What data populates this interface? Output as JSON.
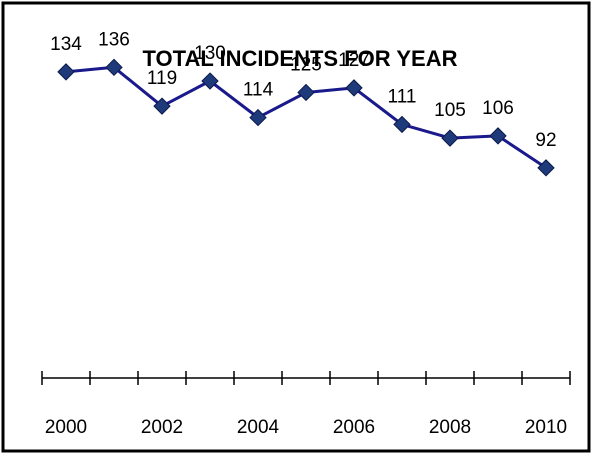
{
  "chart_data": {
    "type": "line",
    "title": "TOTAL INCIDENTS FOR YEAR",
    "x": [
      2000,
      2001,
      2002,
      2003,
      2004,
      2005,
      2006,
      2007,
      2008,
      2009,
      2010
    ],
    "x_tick_labels": [
      "2000",
      "2002",
      "2004",
      "2006",
      "2008",
      "2010"
    ],
    "series": [
      {
        "values": [
          134,
          136,
          119,
          130,
          114,
          125,
          127,
          111,
          105,
          106,
          92
        ]
      }
    ],
    "data_labels": [
      "134",
      "136",
      "119",
      "130",
      "114",
      "125",
      "127",
      "111",
      "105",
      "106",
      "92"
    ],
    "ylim": [
      0,
      160
    ],
    "grid": false,
    "legend": "none",
    "colors": {
      "line": "#1a1a8c",
      "marker": "#1f3a7a",
      "frame": "#000000",
      "axis": "#000000"
    }
  }
}
